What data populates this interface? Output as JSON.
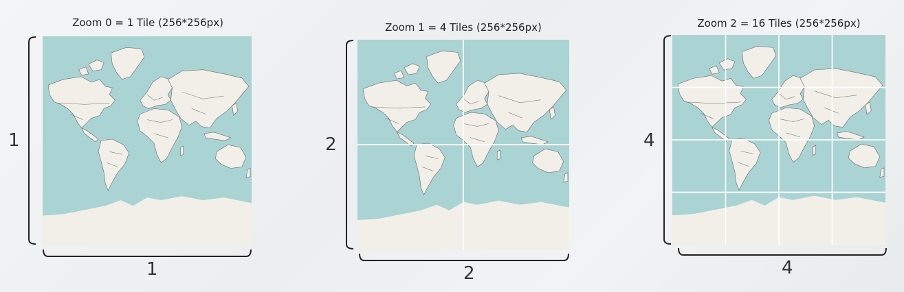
{
  "colors": {
    "ocean": "#aad3d3",
    "land": "#f2efe9",
    "border": "#5a5a5a",
    "grid": "#ffffff"
  },
  "panels": [
    {
      "caption": "Zoom 0 = 1 Tile (256*256px)",
      "vertical_label": "1",
      "horizontal_label": "1",
      "tiles_per_side": 1
    },
    {
      "caption": "Zoom 1 = 4 Tiles (256*256px)",
      "vertical_label": "2",
      "horizontal_label": "2",
      "tiles_per_side": 2
    },
    {
      "caption": "Zoom 2 = 16 Tiles (256*256px)",
      "vertical_label": "4",
      "horizontal_label": "4",
      "tiles_per_side": 4
    }
  ]
}
